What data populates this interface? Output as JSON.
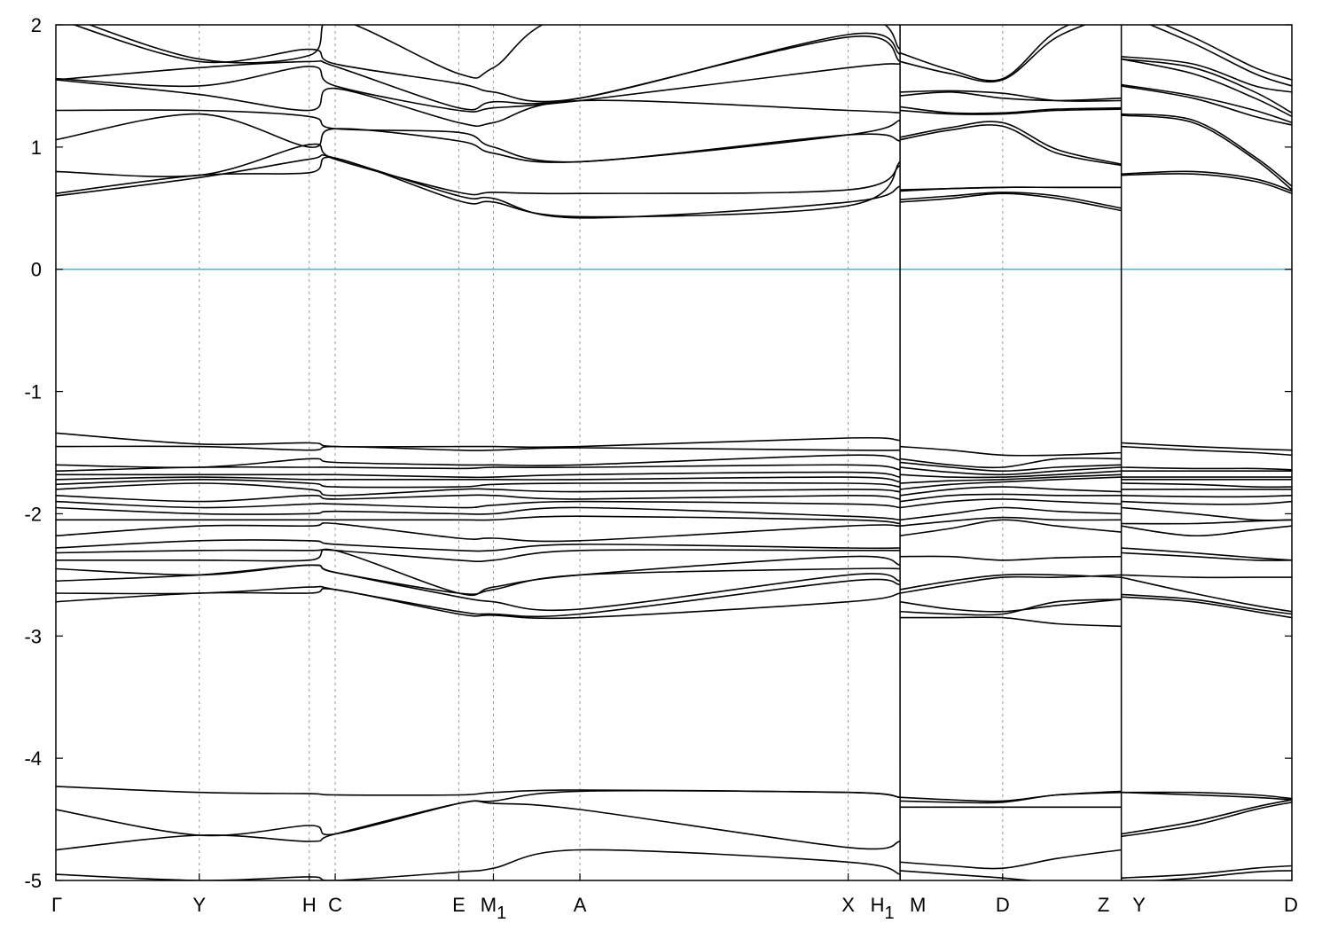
{
  "chart_data": {
    "type": "line",
    "title": "",
    "xlabel": "",
    "ylabel": "",
    "ylim": [
      -5,
      2
    ],
    "y_ticks": [
      2,
      1,
      0,
      -1,
      -2,
      -3,
      -4,
      -5
    ],
    "grid": "vertical dashed lines at high-symmetry points",
    "fermi_level": {
      "value": 0,
      "color": "#5fb4c8"
    },
    "band_color": "#000000",
    "high_symmetry_points": [
      {
        "label": "Γ",
        "sub": "",
        "x": 0.0
      },
      {
        "label": "Y",
        "sub": "",
        "x": 0.116
      },
      {
        "label": "H",
        "sub": "",
        "x": 0.205
      },
      {
        "label": "C",
        "sub": "",
        "x": 0.226
      },
      {
        "label": "E",
        "sub": "",
        "x": 0.326
      },
      {
        "label": "M",
        "sub": "1",
        "x": 0.354
      },
      {
        "label": "A",
        "sub": "",
        "x": 0.424
      },
      {
        "label": "X",
        "sub": "",
        "x": 0.641
      },
      {
        "label": "H",
        "sub": "1",
        "x": 0.683
      },
      {
        "label": "M",
        "sub": "",
        "x": 0.683
      },
      {
        "label": "D",
        "sub": "",
        "x": 0.766
      },
      {
        "label": "Z",
        "sub": "",
        "x": 0.862
      },
      {
        "label": "Y",
        "sub": "",
        "x": 0.862
      },
      {
        "label": "D",
        "sub": "",
        "x": 1.0
      }
    ],
    "path_breaks": [
      0.683,
      0.862
    ],
    "segments": [
      {
        "name": "Γ–Y–H–C–E–M1–A–X–H1",
        "x": [
          0.0,
          0.116,
          0.205,
          0.226,
          0.326,
          0.354,
          0.424,
          0.641,
          0.683
        ],
        "bands": [
          [
            -4.95,
            -5.0,
            -4.97,
            -5.0,
            -4.93,
            -4.9,
            -4.75,
            -4.85,
            -4.95
          ],
          [
            -4.75,
            -4.63,
            -4.68,
            -4.62,
            -4.37,
            -4.37,
            -4.42,
            -4.73,
            -4.68
          ],
          [
            -4.42,
            -4.63,
            -4.55,
            -4.62,
            -4.37,
            -4.35,
            -4.27,
            -4.28,
            -4.32
          ],
          [
            -4.23,
            -4.28,
            -4.29,
            -4.3,
            -4.3,
            -4.28,
            -4.26,
            -4.28,
            -4.32
          ],
          [
            -2.72,
            -2.65,
            -2.65,
            -2.62,
            -2.82,
            -2.83,
            -2.85,
            -2.72,
            -2.65
          ],
          [
            -2.65,
            -2.65,
            -2.6,
            -2.62,
            -2.8,
            -2.82,
            -2.82,
            -2.55,
            -2.58
          ],
          [
            -2.55,
            -2.5,
            -2.42,
            -2.48,
            -2.68,
            -2.72,
            -2.78,
            -2.5,
            -2.55
          ],
          [
            -2.45,
            -2.5,
            -2.42,
            -2.48,
            -2.65,
            -2.62,
            -2.5,
            -2.45,
            -2.45
          ],
          [
            -2.38,
            -2.38,
            -2.38,
            -2.3,
            -2.65,
            -2.6,
            -2.5,
            -2.35,
            -2.42
          ],
          [
            -2.32,
            -2.3,
            -2.3,
            -2.3,
            -2.38,
            -2.38,
            -2.3,
            -2.3,
            -2.3
          ],
          [
            -2.28,
            -2.22,
            -2.22,
            -2.25,
            -2.3,
            -2.3,
            -2.25,
            -2.28,
            -2.28
          ],
          [
            -2.18,
            -2.1,
            -2.1,
            -2.08,
            -2.2,
            -2.2,
            -2.22,
            -2.1,
            -2.1
          ],
          [
            -2.05,
            -2.05,
            -2.05,
            -2.05,
            -2.05,
            -2.05,
            -2.02,
            -2.05,
            -2.08
          ],
          [
            -1.95,
            -2.0,
            -2.0,
            -1.98,
            -2.0,
            -2.0,
            -1.95,
            -2.02,
            -2.05
          ],
          [
            -1.9,
            -1.95,
            -1.92,
            -1.92,
            -1.95,
            -1.93,
            -1.9,
            -1.92,
            -1.95
          ],
          [
            -1.85,
            -1.9,
            -1.85,
            -1.88,
            -1.85,
            -1.85,
            -1.88,
            -1.85,
            -1.88
          ],
          [
            -1.8,
            -1.75,
            -1.8,
            -1.85,
            -1.8,
            -1.8,
            -1.82,
            -1.8,
            -1.82
          ],
          [
            -1.76,
            -1.72,
            -1.75,
            -1.78,
            -1.78,
            -1.76,
            -1.75,
            -1.75,
            -1.78
          ],
          [
            -1.72,
            -1.7,
            -1.72,
            -1.72,
            -1.72,
            -1.72,
            -1.72,
            -1.7,
            -1.74
          ],
          [
            -1.68,
            -1.68,
            -1.68,
            -1.68,
            -1.7,
            -1.7,
            -1.68,
            -1.66,
            -1.7
          ],
          [
            -1.65,
            -1.62,
            -1.62,
            -1.62,
            -1.63,
            -1.62,
            -1.62,
            -1.6,
            -1.64
          ],
          [
            -1.6,
            -1.62,
            -1.55,
            -1.58,
            -1.6,
            -1.6,
            -1.6,
            -1.52,
            -1.56
          ],
          [
            -1.45,
            -1.45,
            -1.48,
            -1.45,
            -1.48,
            -1.48,
            -1.46,
            -1.48,
            -1.48
          ],
          [
            -1.34,
            -1.43,
            -1.42,
            -1.45,
            -1.45,
            -1.45,
            -1.45,
            -1.38,
            -1.4
          ],
          [
            0.62,
            0.77,
            0.79,
            0.91,
            0.56,
            0.55,
            0.43,
            0.52,
            0.88
          ],
          [
            0.6,
            0.75,
            0.9,
            0.91,
            0.6,
            0.58,
            0.42,
            0.55,
            0.68
          ],
          [
            0.8,
            0.77,
            1.02,
            0.9,
            0.63,
            0.63,
            0.62,
            0.65,
            0.85
          ],
          [
            1.06,
            1.27,
            1.0,
            1.15,
            1.05,
            0.95,
            0.88,
            1.1,
            1.22
          ],
          [
            1.3,
            1.3,
            1.25,
            1.15,
            1.12,
            1.0,
            0.88,
            1.1,
            1.05
          ],
          [
            1.55,
            1.43,
            1.3,
            1.48,
            1.2,
            1.2,
            1.38,
            1.3,
            1.28
          ],
          [
            1.56,
            1.5,
            1.66,
            1.5,
            1.3,
            1.32,
            1.38,
            1.65,
            1.68
          ],
          [
            1.55,
            1.65,
            1.7,
            1.66,
            1.32,
            1.37,
            1.4,
            1.9,
            1.7
          ],
          [
            2.05,
            1.7,
            1.8,
            1.68,
            1.52,
            1.45,
            1.4,
            1.92,
            1.76
          ],
          [
            2.1,
            1.72,
            1.75,
            2.05,
            1.6,
            1.65,
            2.1,
            2.1,
            1.8
          ]
        ]
      },
      {
        "name": "M–D–Z",
        "x": [
          0.683,
          0.724,
          0.766,
          0.81,
          0.862
        ],
        "bands": [
          [
            -4.92,
            -4.95,
            -4.98,
            -5.02,
            -5.05
          ],
          [
            -4.85,
            -4.88,
            -4.9,
            -4.82,
            -4.75
          ],
          [
            -4.4,
            -4.4,
            -4.4,
            -4.4,
            -4.4
          ],
          [
            -4.35,
            -4.36,
            -4.36,
            -4.3,
            -4.28
          ],
          [
            -4.32,
            -4.34,
            -4.35,
            -4.3,
            -4.27
          ],
          [
            -2.85,
            -2.85,
            -2.85,
            -2.9,
            -2.92
          ],
          [
            -2.8,
            -2.82,
            -2.82,
            -2.72,
            -2.7
          ],
          [
            -2.72,
            -2.78,
            -2.8,
            -2.75,
            -2.7
          ],
          [
            -2.65,
            -2.58,
            -2.52,
            -2.52,
            -2.5
          ],
          [
            -2.62,
            -2.55,
            -2.5,
            -2.5,
            -2.52
          ],
          [
            -2.35,
            -2.35,
            -2.38,
            -2.36,
            -2.35
          ],
          [
            -2.18,
            -2.12,
            -2.05,
            -2.1,
            -2.15
          ],
          [
            -2.1,
            -2.06,
            -2.03,
            -2.05,
            -2.05
          ],
          [
            -2.05,
            -2.0,
            -1.95,
            -1.98,
            -2.0
          ],
          [
            -1.95,
            -1.9,
            -1.88,
            -1.9,
            -1.92
          ],
          [
            -1.9,
            -1.85,
            -1.84,
            -1.85,
            -1.85
          ],
          [
            -1.85,
            -1.8,
            -1.78,
            -1.8,
            -1.82
          ],
          [
            -1.8,
            -1.76,
            -1.74,
            -1.72,
            -1.7
          ],
          [
            -1.75,
            -1.73,
            -1.72,
            -1.7,
            -1.68
          ],
          [
            -1.68,
            -1.7,
            -1.7,
            -1.68,
            -1.65
          ],
          [
            -1.62,
            -1.66,
            -1.68,
            -1.65,
            -1.62
          ],
          [
            -1.58,
            -1.62,
            -1.65,
            -1.62,
            -1.6
          ],
          [
            -1.55,
            -1.6,
            -1.62,
            -1.55,
            -1.55
          ],
          [
            -1.45,
            -1.48,
            -1.52,
            -1.52,
            -1.5
          ],
          [
            0.55,
            0.58,
            0.62,
            0.58,
            0.48
          ],
          [
            0.57,
            0.6,
            0.63,
            0.6,
            0.5
          ],
          [
            0.64,
            0.66,
            0.67,
            0.67,
            0.67
          ],
          [
            0.65,
            0.66,
            0.67,
            0.67,
            0.67
          ],
          [
            1.06,
            1.14,
            1.17,
            0.95,
            0.85
          ],
          [
            1.08,
            1.16,
            1.2,
            0.98,
            0.86
          ],
          [
            1.3,
            1.27,
            1.27,
            1.3,
            1.31
          ],
          [
            1.33,
            1.28,
            1.28,
            1.31,
            1.32
          ],
          [
            1.42,
            1.45,
            1.4,
            1.38,
            1.4
          ],
          [
            1.45,
            1.46,
            1.44,
            1.38,
            1.38
          ],
          [
            1.7,
            1.6,
            1.55,
            1.9,
            2.1
          ],
          [
            1.77,
            1.63,
            1.56,
            1.95,
            2.15
          ]
        ]
      },
      {
        "name": "Y–D",
        "x": [
          0.862,
          0.92,
          0.97,
          1.0
        ],
        "bands": [
          [
            -5.02,
            -4.98,
            -4.93,
            -4.92
          ],
          [
            -4.98,
            -4.95,
            -4.9,
            -4.88
          ],
          [
            -4.64,
            -4.55,
            -4.42,
            -4.36
          ],
          [
            -4.62,
            -4.52,
            -4.4,
            -4.34
          ],
          [
            -4.28,
            -4.28,
            -4.3,
            -4.33
          ],
          [
            -4.28,
            -4.3,
            -4.32,
            -4.34
          ],
          [
            -2.68,
            -2.72,
            -2.8,
            -2.85
          ],
          [
            -2.66,
            -2.7,
            -2.78,
            -2.82
          ],
          [
            -2.52,
            -2.65,
            -2.75,
            -2.8
          ],
          [
            -2.5,
            -2.52,
            -2.52,
            -2.52
          ],
          [
            -2.32,
            -2.35,
            -2.38,
            -2.38
          ],
          [
            -2.28,
            -2.32,
            -2.36,
            -2.38
          ],
          [
            -2.1,
            -2.18,
            -2.13,
            -2.1
          ],
          [
            -2.08,
            -2.08,
            -2.06,
            -2.05
          ],
          [
            -1.95,
            -2.0,
            -2.05,
            -2.05
          ],
          [
            -1.9,
            -1.92,
            -1.92,
            -1.9
          ],
          [
            -1.85,
            -1.86,
            -1.86,
            -1.85
          ],
          [
            -1.8,
            -1.8,
            -1.8,
            -1.8
          ],
          [
            -1.75,
            -1.76,
            -1.78,
            -1.78
          ],
          [
            -1.72,
            -1.72,
            -1.72,
            -1.72
          ],
          [
            -1.7,
            -1.7,
            -1.7,
            -1.7
          ],
          [
            -1.65,
            -1.65,
            -1.65,
            -1.65
          ],
          [
            -1.62,
            -1.63,
            -1.63,
            -1.64
          ],
          [
            -1.45,
            -1.48,
            -1.5,
            -1.52
          ],
          [
            -1.42,
            -1.45,
            -1.47,
            -1.48
          ],
          [
            0.77,
            0.78,
            0.72,
            0.62
          ],
          [
            0.78,
            0.8,
            0.74,
            0.64
          ],
          [
            1.26,
            1.2,
            0.9,
            0.65
          ],
          [
            1.27,
            1.22,
            0.92,
            0.68
          ],
          [
            1.5,
            1.4,
            1.25,
            1.18
          ],
          [
            1.51,
            1.42,
            1.3,
            1.2
          ],
          [
            1.72,
            1.6,
            1.4,
            1.25
          ],
          [
            1.72,
            1.65,
            1.45,
            1.28
          ],
          [
            1.74,
            1.68,
            1.5,
            1.45
          ],
          [
            2.1,
            1.85,
            1.6,
            1.5
          ],
          [
            2.15,
            1.9,
            1.65,
            1.55
          ]
        ]
      }
    ]
  }
}
